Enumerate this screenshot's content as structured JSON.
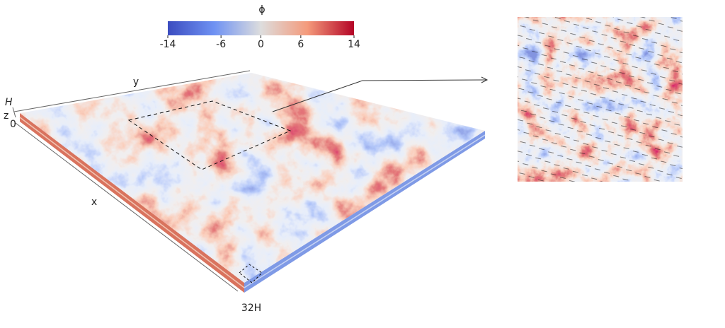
{
  "colorbar": {
    "label": "ϕ",
    "lim": [
      -14,
      14
    ],
    "ticks": [
      -14,
      -6,
      0,
      6,
      14
    ]
  },
  "axes": {
    "y": "y",
    "x": "x",
    "z": "z",
    "z_top": "H",
    "z_bottom": "0",
    "x_end": "32H"
  }
}
